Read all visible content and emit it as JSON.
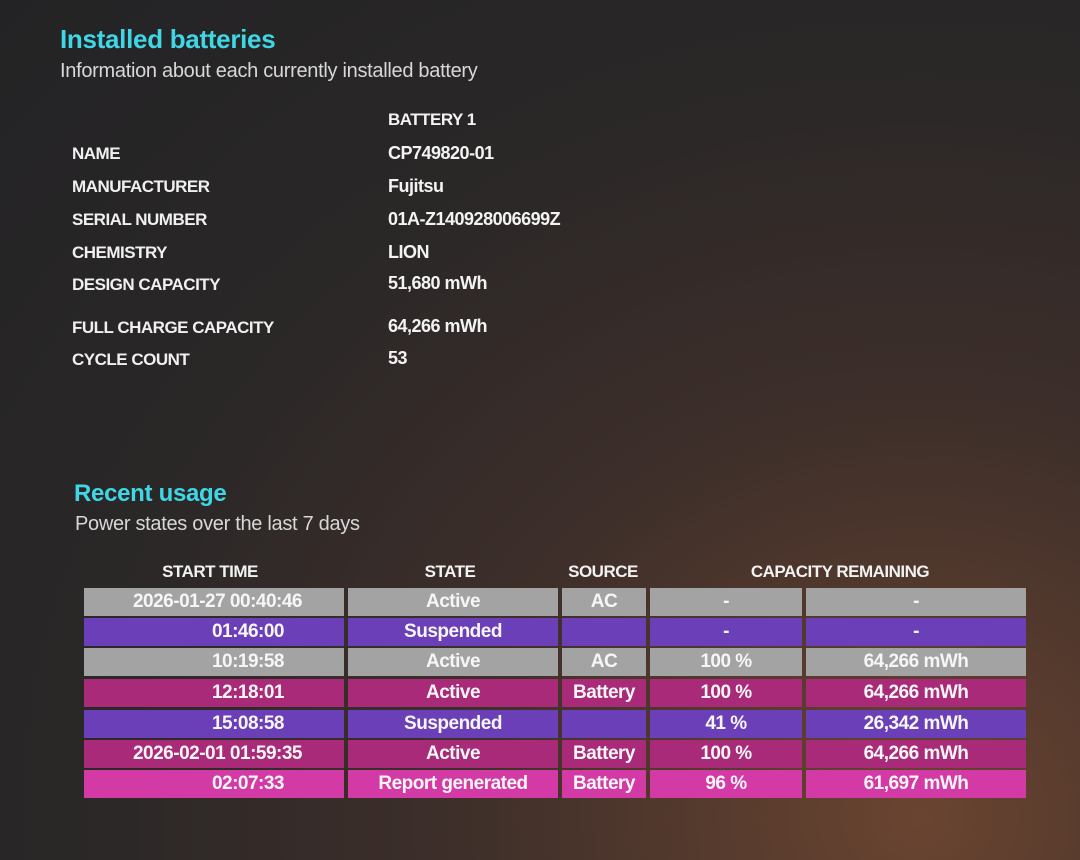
{
  "installed": {
    "title": "Installed batteries",
    "subtitle": "Information about each currently installed battery",
    "column_header": "BATTERY 1",
    "fields": [
      {
        "label": "NAME",
        "value": "CP749820-01"
      },
      {
        "label": "MANUFACTURER",
        "value": "Fujitsu"
      },
      {
        "label": "SERIAL NUMBER",
        "value": "01A-Z140928006699Z"
      },
      {
        "label": "CHEMISTRY",
        "value": "LION"
      },
      {
        "label": "DESIGN CAPACITY",
        "value": "51,680 mWh"
      },
      {
        "label": "FULL CHARGE CAPACITY",
        "value": "64,266 mWh"
      },
      {
        "label": "CYCLE COUNT",
        "value": "53"
      }
    ]
  },
  "recent": {
    "title": "Recent usage",
    "subtitle": "Power states over the last 7 days",
    "headers": {
      "start": "START TIME",
      "state": "STATE",
      "source": "SOURCE",
      "capacity": "CAPACITY REMAINING"
    },
    "rows": [
      {
        "start": "2026-01-27  00:40:46",
        "state": "Active",
        "source": "AC",
        "pct": "-",
        "cap": "-"
      },
      {
        "start": "01:46:00",
        "state": "Suspended",
        "source": "",
        "pct": "-",
        "cap": "-"
      },
      {
        "start": "10:19:58",
        "state": "Active",
        "source": "AC",
        "pct": "100 %",
        "cap": "64,266 mWh"
      },
      {
        "start": "12:18:01",
        "state": "Active",
        "source": "Battery",
        "pct": "100 %",
        "cap": "64,266 mWh"
      },
      {
        "start": "15:08:58",
        "state": "Suspended",
        "source": "",
        "pct": "41 %",
        "cap": "26,342 mWh"
      },
      {
        "start": "2026-02-01  01:59:35",
        "state": "Active",
        "source": "Battery",
        "pct": "100 %",
        "cap": "64,266 mWh"
      },
      {
        "start": "02:07:33",
        "state": "Report generated",
        "source": "Battery",
        "pct": "96 %",
        "cap": "61,697 mWh"
      }
    ]
  }
}
